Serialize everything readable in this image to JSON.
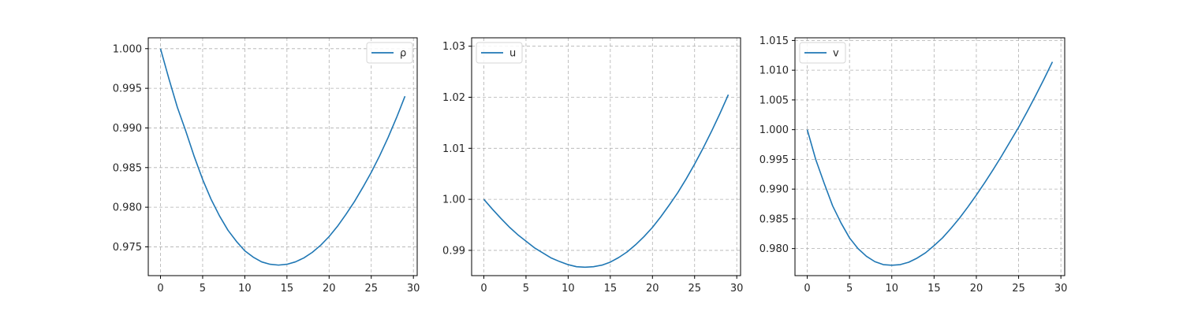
{
  "figure": {
    "line_color": "#1f77b4",
    "grid_color": "#b0b0b0"
  },
  "chart_data": [
    {
      "type": "line",
      "title": "",
      "xlabel": "",
      "ylabel": "",
      "xlim": [
        -1.45,
        30.45
      ],
      "ylim": [
        0.97137,
        1.00137
      ],
      "xticks": [
        0,
        5,
        10,
        15,
        20,
        25,
        30
      ],
      "xtick_labels": [
        "0",
        "5",
        "10",
        "15",
        "20",
        "25",
        "30"
      ],
      "yticks": [
        0.975,
        0.98,
        0.985,
        0.99,
        0.995,
        1.0
      ],
      "ytick_labels": [
        "0.975",
        "0.980",
        "0.985",
        "0.990",
        "0.995",
        "1.000"
      ],
      "grid": true,
      "legend_position": "upper right",
      "series": [
        {
          "name": "ρ",
          "color": "#1f77b4",
          "x": [
            0,
            1,
            2,
            3,
            4,
            5,
            6,
            7,
            8,
            9,
            10,
            11,
            12,
            13,
            14,
            15,
            16,
            17,
            18,
            19,
            20,
            21,
            22,
            23,
            24,
            25,
            26,
            27,
            28,
            29
          ],
          "y": [
            1.0,
            0.9962,
            0.9926,
            0.9896,
            0.9864,
            0.9835,
            0.981,
            0.9789,
            0.9771,
            0.9757,
            0.9745,
            0.9737,
            0.9731,
            0.9728,
            0.9727,
            0.9728,
            0.9731,
            0.9736,
            0.9743,
            0.9752,
            0.9763,
            0.9776,
            0.9791,
            0.9807,
            0.9825,
            0.9844,
            0.9865,
            0.9888,
            0.9913,
            0.994
          ]
        }
      ]
    },
    {
      "type": "line",
      "title": "",
      "xlabel": "",
      "ylabel": "",
      "xlim": [
        -1.45,
        30.45
      ],
      "ylim": [
        0.98505,
        1.03165
      ],
      "xticks": [
        0,
        5,
        10,
        15,
        20,
        25,
        30
      ],
      "xtick_labels": [
        "0",
        "5",
        "10",
        "15",
        "20",
        "25",
        "30"
      ],
      "yticks": [
        0.99,
        1.0,
        1.01,
        1.02,
        1.03
      ],
      "ytick_labels": [
        "0.99",
        "1.00",
        "1.01",
        "1.02",
        "1.03"
      ],
      "grid": true,
      "legend_position": "upper left",
      "series": [
        {
          "name": "u",
          "color": "#1f77b4",
          "x": [
            0,
            1,
            2,
            3,
            4,
            5,
            6,
            7,
            8,
            9,
            10,
            11,
            12,
            13,
            14,
            15,
            16,
            17,
            18,
            19,
            20,
            21,
            22,
            23,
            24,
            25,
            26,
            27,
            28,
            29
          ],
          "y": [
            1.0,
            0.9981,
            0.9963,
            0.9946,
            0.9931,
            0.9918,
            0.9905,
            0.9895,
            0.9885,
            0.9878,
            0.9872,
            0.9868,
            0.9867,
            0.9868,
            0.9871,
            0.9877,
            0.9886,
            0.9897,
            0.9911,
            0.9927,
            0.9945,
            0.9966,
            0.9989,
            1.0013,
            1.004,
            1.0069,
            1.01,
            1.0133,
            1.0168,
            1.0205
          ]
        }
      ]
    },
    {
      "type": "line",
      "title": "",
      "xlabel": "",
      "ylabel": "",
      "xlim": [
        -1.45,
        30.45
      ],
      "ylim": [
        0.97545,
        1.01545
      ],
      "xticks": [
        0,
        5,
        10,
        15,
        20,
        25,
        30
      ],
      "xtick_labels": [
        "0",
        "5",
        "10",
        "15",
        "20",
        "25",
        "30"
      ],
      "yticks": [
        0.98,
        0.985,
        0.99,
        0.995,
        1.0,
        1.005,
        1.01,
        1.015
      ],
      "ytick_labels": [
        "0.980",
        "0.985",
        "0.990",
        "0.995",
        "1.000",
        "1.005",
        "1.010",
        "1.015"
      ],
      "grid": true,
      "legend_position": "upper left",
      "series": [
        {
          "name": "v",
          "color": "#1f77b4",
          "x": [
            0,
            1,
            2,
            3,
            4,
            5,
            6,
            7,
            8,
            9,
            10,
            11,
            12,
            13,
            14,
            15,
            16,
            17,
            18,
            19,
            20,
            21,
            22,
            23,
            24,
            25,
            26,
            27,
            28,
            29
          ],
          "y": [
            1.0,
            0.995,
            0.991,
            0.9872,
            0.9843,
            0.9818,
            0.98,
            0.9787,
            0.9778,
            0.9773,
            0.9772,
            0.9773,
            0.9777,
            0.9784,
            0.9793,
            0.9805,
            0.9818,
            0.9834,
            0.9851,
            0.987,
            0.989,
            0.9911,
            0.9933,
            0.9956,
            0.998,
            1.0004,
            1.003,
            1.0057,
            1.0085,
            1.0114
          ]
        }
      ]
    }
  ]
}
